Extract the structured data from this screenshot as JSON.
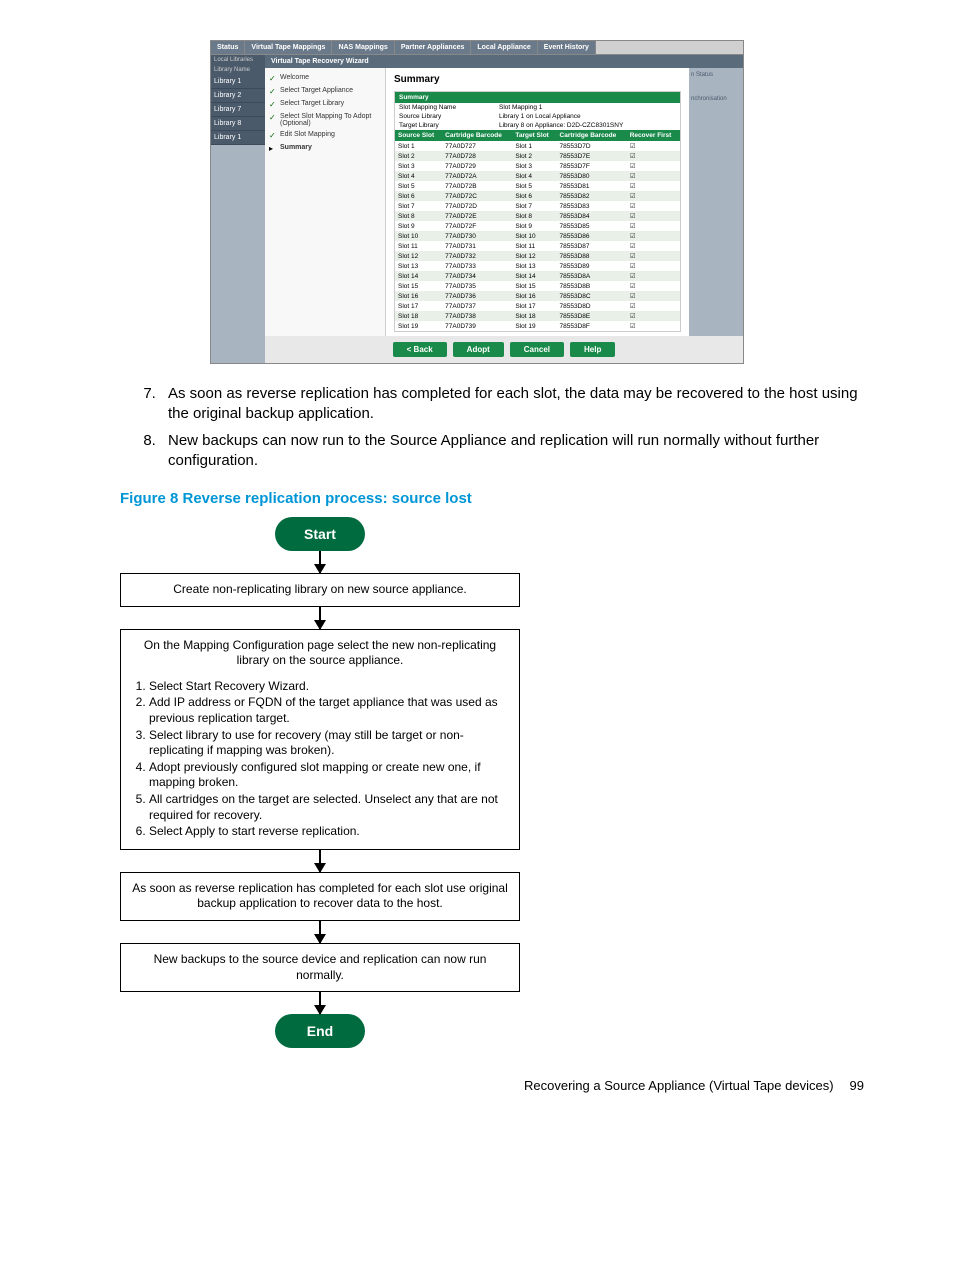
{
  "screenshot": {
    "top_tabs": [
      "Status",
      "Virtual Tape Mappings",
      "NAS Mappings",
      "Partner Appliances",
      "Local Appliance",
      "Event History"
    ],
    "sub_header": "Virtual Tape Recovery Wizard",
    "sidebar": {
      "header": "Local Libraries",
      "col_header": "Library Name",
      "items": [
        "Library 1",
        "Library 2",
        "Library 7",
        "Library 8",
        "Library 1"
      ]
    },
    "wizard_steps": [
      {
        "mark": "check",
        "label": "Welcome"
      },
      {
        "mark": "check",
        "label": "Select Target Appliance"
      },
      {
        "mark": "check",
        "label": "Select Target Library"
      },
      {
        "mark": "check",
        "label": "Select Slot Mapping To Adopt (Optional)"
      },
      {
        "mark": "check",
        "label": "Edit Slot Mapping"
      },
      {
        "mark": "arrow",
        "label": "Summary",
        "bold": true
      }
    ],
    "summary_title": "Summary",
    "summary_bar": "Summary",
    "info_rows": [
      {
        "l": "Slot Mapping Name",
        "v": "Slot Mapping 1"
      },
      {
        "l": "Source Library",
        "v": "Library 1 on Local Appliance"
      },
      {
        "l": "Target Library",
        "v": "Library 8 on Appliance: D2D-CZC8301SNY"
      }
    ],
    "slot_headers": [
      "Source Slot",
      "Cartridge Barcode",
      "Target Slot",
      "Cartridge Barcode",
      "Recover First"
    ],
    "slots": [
      [
        "Slot 1",
        "77A0D727",
        "Slot 1",
        "78553D7D"
      ],
      [
        "Slot 2",
        "77A0D728",
        "Slot 2",
        "78553D7E"
      ],
      [
        "Slot 3",
        "77A0D729",
        "Slot 3",
        "78553D7F"
      ],
      [
        "Slot 4",
        "77A0D72A",
        "Slot 4",
        "78553D80"
      ],
      [
        "Slot 5",
        "77A0D72B",
        "Slot 5",
        "78553D81"
      ],
      [
        "Slot 6",
        "77A0D72C",
        "Slot 6",
        "78553D82"
      ],
      [
        "Slot 7",
        "77A0D72D",
        "Slot 7",
        "78553D83"
      ],
      [
        "Slot 8",
        "77A0D72E",
        "Slot 8",
        "78553D84"
      ],
      [
        "Slot 9",
        "77A0D72F",
        "Slot 9",
        "78553D85"
      ],
      [
        "Slot 10",
        "77A0D730",
        "Slot 10",
        "78553D86"
      ],
      [
        "Slot 11",
        "77A0D731",
        "Slot 11",
        "78553D87"
      ],
      [
        "Slot 12",
        "77A0D732",
        "Slot 12",
        "78553D88"
      ],
      [
        "Slot 13",
        "77A0D733",
        "Slot 13",
        "78553D89"
      ],
      [
        "Slot 14",
        "77A0D734",
        "Slot 14",
        "78553D8A"
      ],
      [
        "Slot 15",
        "77A0D735",
        "Slot 15",
        "78553D8B"
      ],
      [
        "Slot 16",
        "77A0D736",
        "Slot 16",
        "78553D8C"
      ],
      [
        "Slot 17",
        "77A0D737",
        "Slot 17",
        "78553D8D"
      ],
      [
        "Slot 18",
        "77A0D738",
        "Slot 18",
        "78553D8E"
      ],
      [
        "Slot 19",
        "77A0D739",
        "Slot 19",
        "78553D8F"
      ]
    ],
    "buttons": {
      "back": "< Back",
      "adopt": "Adopt",
      "cancel": "Cancel",
      "help": "Help"
    }
  },
  "list_items": [
    "As soon as reverse replication has completed for each slot, the data may be recovered to the host using the original backup application.",
    "New backups can now run to the Source Appliance and replication will run normally without further configuration."
  ],
  "figure_title": "Figure 8 Reverse replication process: source lost",
  "flow": {
    "start": "Start",
    "end": "End",
    "box1": "Create non-replicating library on new source appliance.",
    "box2_title": "On the Mapping Configuration page select the new non-replicating library on the source appliance.",
    "box2_items": [
      "Select Start Recovery Wizard.",
      "Add IP address or FQDN of the target appliance that was used as previous replication target.",
      "Select library to use for recovery (may still be target or non-replicating if mapping was broken).",
      "Adopt previously configured slot mapping or create new one, if mapping broken.",
      "All cartridges on the target are selected. Unselect any that are not required for recovery.",
      "Select Apply to start reverse replication."
    ],
    "box3": "As soon as reverse replication has completed for each slot use original backup application to recover data to the host.",
    "box4": "New backups to the source device and replication can now run normally."
  },
  "footer": {
    "text": "Recovering a Source Appliance (Virtual Tape devices)",
    "page": "99"
  }
}
